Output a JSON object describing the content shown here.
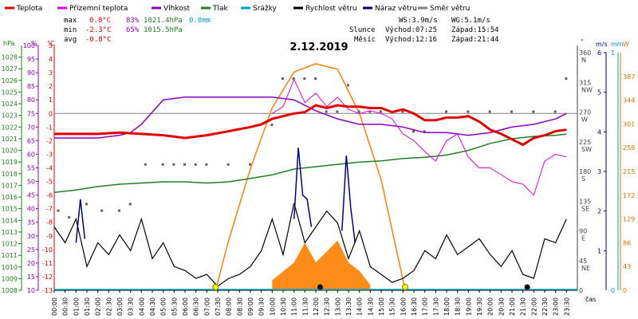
{
  "title": "2.12.2019",
  "legend": [
    {
      "label": "Teplota",
      "color": "#e00000"
    },
    {
      "label": "Přízemní teplota",
      "color": "#e000e0"
    },
    {
      "label": "Vlhkost",
      "color": "#9000c0"
    },
    {
      "label": "Tlak",
      "color": "#208020"
    },
    {
      "label": "Srážky",
      "color": "#00a0c0"
    },
    {
      "label": "Rychlost větru",
      "color": "#000000"
    },
    {
      "label": "Náraz větru",
      "color": "#000080"
    },
    {
      "label": "Směr větru",
      "color": "#808080"
    }
  ],
  "stats": {
    "max": {
      "label": "max",
      "temp": "0.8°C",
      "hum": "83%",
      "press": "1021.4hPa",
      "rain": "0.0mm"
    },
    "min": {
      "label": "min",
      "temp": "-2.3°C",
      "hum": "65%",
      "press": "1015.5hPa"
    },
    "avg": {
      "label": "avg",
      "temp": "-0.8°C"
    }
  },
  "wind_info": {
    "ws": "WS:3.9m/s",
    "wg": "WG:5.1m/s"
  },
  "sun": {
    "label": "Slunce",
    "rise": "Východ:07:25",
    "set": "Západ:15:54"
  },
  "moon": {
    "label": "Měsíc",
    "rise": "Východ:12:16",
    "set": "Západ:21:44"
  },
  "axis_units": {
    "hpa": "hPa",
    "pct": "%",
    "degc": "°C",
    "deg": "°",
    "ms": "m/s",
    "mm": "mm",
    "w": "W",
    "time": "čas"
  },
  "chart_data": {
    "type": "line",
    "title": "2.12.2019",
    "time_labels": [
      "00:00",
      "00:30",
      "01:00",
      "01:30",
      "02:00",
      "02:30",
      "03:00",
      "03:30",
      "04:00",
      "04:30",
      "05:00",
      "05:30",
      "06:00",
      "06:30",
      "07:00",
      "07:30",
      "08:00",
      "08:30",
      "09:00",
      "09:30",
      "10:00",
      "10:30",
      "11:00",
      "11:30",
      "12:00",
      "12:30",
      "13:00",
      "13:30",
      "14:00",
      "14:30",
      "15:00",
      "15:30",
      "16:00",
      "16:30",
      "17:00",
      "17:30",
      "18:00",
      "18:30",
      "19:00",
      "19:30",
      "20:00",
      "20:30",
      "21:00",
      "21:30",
      "22:00",
      "22:30",
      "23:00",
      "23:30"
    ],
    "axes": {
      "pressure": {
        "label": "hPa",
        "min": 1008,
        "max": 1029,
        "ticks": [
          1008,
          1009,
          1010,
          1011,
          1012,
          1013,
          1014,
          1015,
          1016,
          1017,
          1018,
          1019,
          1020,
          1021,
          1022,
          1023,
          1024,
          1025,
          1026,
          1027,
          1028
        ]
      },
      "humidity": {
        "label": "%",
        "min": 10,
        "max": 100,
        "ticks": [
          10,
          15,
          20,
          25,
          30,
          35,
          40,
          45,
          50,
          55,
          60,
          65,
          70,
          75,
          80,
          85,
          90,
          95,
          100
        ]
      },
      "temperature": {
        "label": "°C",
        "min": -13,
        "max": 5,
        "ticks": [
          -13,
          -12,
          -11,
          -10,
          -9,
          -8,
          -7,
          -6,
          -5,
          -4,
          -3,
          -2,
          -1,
          0,
          1,
          2,
          3,
          4,
          5
        ]
      },
      "direction": {
        "label": "°",
        "min": 0,
        "max": 360,
        "ticks": [
          {
            "v": 360,
            "t": "360",
            "c": "N"
          },
          {
            "v": 315,
            "t": "315",
            "c": "NW"
          },
          {
            "v": 270,
            "t": "270",
            "c": "W"
          },
          {
            "v": 225,
            "t": "225",
            "c": "SW"
          },
          {
            "v": 180,
            "t": "180",
            "c": "S"
          },
          {
            "v": 135,
            "t": "135",
            "c": "SE"
          },
          {
            "v": 90,
            "t": "90",
            "c": "E"
          },
          {
            "v": 45,
            "t": "45",
            "c": "NE"
          },
          {
            "v": 0,
            "t": "0",
            "c": ""
          }
        ]
      },
      "wind": {
        "label": "m/s",
        "min": 0,
        "max": 6,
        "ticks": [
          1,
          2,
          3,
          4,
          5,
          6
        ]
      },
      "rain": {
        "label": "mm",
        "min": 0,
        "max": 1,
        "ticks": [
          0,
          1
        ]
      },
      "solar": {
        "label": "W",
        "min": 0,
        "max": 430,
        "ticks": [
          0,
          43,
          86,
          129,
          172,
          215,
          258,
          301,
          344,
          387
        ]
      }
    },
    "series": [
      {
        "name": "Teplota",
        "unit": "°C",
        "color": "#e00000",
        "x": [
          0,
          1,
          2,
          3,
          4,
          5,
          6,
          7,
          8,
          9,
          9.5,
          10,
          10.5,
          11,
          11.5,
          12,
          12.5,
          13,
          13.5,
          14,
          14.5,
          15,
          15.5,
          16,
          16.5,
          17,
          17.5,
          18,
          18.5,
          19,
          19.5,
          20,
          20.5,
          21,
          21.5,
          22,
          22.5,
          23,
          23.5
        ],
        "values": [
          -1.5,
          -1.5,
          -1.5,
          -1.4,
          -1.5,
          -1.6,
          -1.8,
          -1.6,
          -1.3,
          -1.0,
          -0.8,
          -0.4,
          -0.2,
          0.0,
          0.1,
          0.6,
          0.4,
          0.6,
          0.5,
          0.5,
          0.4,
          0.4,
          0.1,
          0.3,
          0.0,
          -0.5,
          -0.5,
          -0.3,
          -0.3,
          -0.2,
          -0.6,
          -1.2,
          -1.5,
          -1.9,
          -2.3,
          -1.8,
          -1.6,
          -1.3,
          -1.2
        ]
      },
      {
        "name": "Přízemní teplota",
        "unit": "°C",
        "color": "#e000e0",
        "x": [
          10,
          10.5,
          11,
          11.5,
          12,
          12.5,
          13,
          13.5,
          14,
          14.5,
          15,
          15.5,
          16,
          16.5,
          17,
          17.5,
          18,
          18.5,
          19,
          19.5,
          20,
          20.5,
          21,
          21.5,
          22,
          22.5,
          23,
          23.5
        ],
        "values": [
          0.0,
          0.5,
          2.5,
          0.8,
          1.5,
          0.5,
          1.2,
          0.3,
          0.0,
          0.2,
          0.0,
          -0.4,
          -1.5,
          -2.0,
          -2.8,
          -3.5,
          -2.0,
          -1.5,
          -3.2,
          -4.0,
          -4.0,
          -4.5,
          -5.0,
          -5.2,
          -6.0,
          -3.5,
          -3.0,
          -3.2
        ]
      },
      {
        "name": "Vlhkost",
        "unit": "%",
        "color": "#9000c0",
        "x": [
          0,
          1,
          2,
          3,
          3.5,
          4,
          5,
          6,
          7,
          7.5,
          8,
          9,
          10,
          11,
          11.5,
          12,
          13,
          14,
          15,
          16,
          17,
          18,
          19,
          20,
          21,
          22,
          23,
          23.5
        ],
        "values": [
          66,
          66,
          66,
          67,
          68,
          71,
          80,
          81,
          81,
          81,
          81,
          81,
          81,
          80,
          78,
          76,
          73,
          71,
          71,
          70,
          68,
          68,
          67,
          68,
          70,
          71,
          73,
          75
        ]
      },
      {
        "name": "Tlak",
        "unit": "hPa",
        "color": "#208020",
        "x": [
          0,
          1,
          2,
          3,
          4,
          5,
          6,
          7,
          8,
          9,
          10,
          11,
          12,
          13,
          14,
          15,
          16,
          17,
          18,
          19,
          20,
          21,
          22,
          23,
          23.5
        ],
        "values": [
          1016.4,
          1016.6,
          1016.9,
          1017.1,
          1017.2,
          1017.3,
          1017.3,
          1017.2,
          1017.3,
          1017.6,
          1017.9,
          1018.4,
          1018.6,
          1018.8,
          1019.0,
          1019.1,
          1019.3,
          1019.4,
          1019.6,
          1020.0,
          1020.6,
          1021.0,
          1021.2,
          1021.3,
          1021.4
        ]
      },
      {
        "name": "Rychlost větru",
        "unit": "m/s",
        "color": "#000000",
        "x": [
          0,
          0.5,
          1,
          1.5,
          2,
          2.5,
          3,
          3.5,
          4,
          4.5,
          5,
          5.5,
          6,
          6.5,
          7,
          7.5,
          8,
          8.5,
          9,
          9.5,
          10,
          10.5,
          11,
          11.5,
          12,
          12.5,
          13,
          13.5,
          14,
          14.5,
          15,
          15.5,
          16,
          16.5,
          17,
          17.5,
          18,
          18.5,
          19,
          19.5,
          20,
          20.5,
          21,
          21.5,
          22,
          22.5,
          23,
          23.5
        ],
        "values": [
          1.6,
          1.2,
          1.8,
          0.6,
          1.2,
          0.9,
          1.4,
          1.0,
          1.8,
          0.8,
          1.2,
          0.6,
          0.5,
          0.3,
          0.4,
          0.1,
          0.3,
          0.4,
          0.6,
          1.0,
          1.8,
          0.9,
          2.2,
          1.2,
          1.6,
          2.0,
          1.7,
          0.8,
          1.5,
          0.6,
          0.4,
          0.2,
          0.3,
          0.5,
          1.0,
          0.8,
          1.4,
          0.9,
          1.1,
          1.3,
          0.9,
          0.6,
          1.0,
          0.4,
          0.3,
          1.3,
          1.2,
          1.8
        ]
      },
      {
        "name": "Náraz větru",
        "unit": "m/s",
        "color": "#000080",
        "x": [
          1,
          1.2,
          1.4,
          11,
          11.2,
          11.4,
          11.6,
          11.8,
          13.2,
          13.4,
          13.6,
          13.8
        ],
        "values": [
          1.2,
          2.3,
          1.3,
          1.8,
          3.6,
          2.4,
          2.3,
          1.6,
          1.5,
          3.4,
          2.1,
          1.2
        ]
      },
      {
        "name": "Směr větru",
        "unit": "°",
        "color": "#808080",
        "x": [
          0.2,
          0.7,
          1.5,
          2.2,
          3.0,
          3.5,
          4.2,
          5.0,
          5.5,
          6.0,
          6.5,
          7.0,
          8.0,
          9.0,
          10.0,
          10.5,
          11.0,
          11.5,
          12.0,
          12.5,
          13.0,
          13.5,
          14.0,
          14.5,
          15.0,
          16.0,
          16.5,
          17.0,
          18.0,
          19.0,
          20.0,
          21.0,
          22.0,
          23.0,
          23.5
        ],
        "values": [
          120,
          110,
          130,
          120,
          120,
          130,
          190,
          190,
          190,
          190,
          190,
          190,
          190,
          190,
          250,
          320,
          320,
          320,
          320,
          270,
          270,
          310,
          270,
          270,
          270,
          270,
          240,
          240,
          270,
          270,
          270,
          270,
          270,
          270,
          320
        ]
      },
      {
        "name": "Solar",
        "unit": "W",
        "color": "#ff8000",
        "x": [
          7.4,
          8,
          9,
          10,
          11,
          12,
          13,
          14,
          15,
          16.1
        ],
        "values": [
          0,
          90,
          220,
          330,
          395,
          410,
          400,
          320,
          200,
          0
        ]
      }
    ],
    "solar_fill": {
      "x": [
        10,
        11,
        11.5,
        12,
        12.5,
        13,
        13.5,
        14,
        14.5
      ],
      "values": [
        18,
        50,
        86,
        50,
        70,
        90,
        50,
        35,
        10
      ]
    },
    "sun_marks": [
      7.4,
      16.1
    ],
    "moon_marks": [
      12.2,
      21.7
    ],
    "grid": false,
    "legend_position": "top"
  }
}
